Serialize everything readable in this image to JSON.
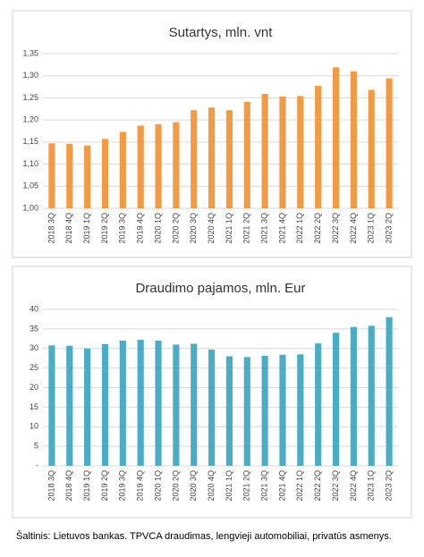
{
  "chart_data": [
    {
      "type": "bar",
      "title": "Sutartys, mln. vnt",
      "color": "#f39a45",
      "grid": true,
      "categories": [
        "2018 3Q",
        "2018 4Q",
        "2019 1Q",
        "2019 2Q",
        "2019 3Q",
        "2019 4Q",
        "2020 1Q",
        "2020 2Q",
        "2020 3Q",
        "2020 4Q",
        "2021 1Q",
        "2021 2Q",
        "2021 3Q",
        "2021 4Q",
        "2022 1Q",
        "2022 2Q",
        "2022 3Q",
        "2022 4Q",
        "2023 1Q",
        "2023 2Q"
      ],
      "values": [
        1.147,
        1.146,
        1.142,
        1.157,
        1.173,
        1.187,
        1.19,
        1.195,
        1.222,
        1.228,
        1.222,
        1.241,
        1.259,
        1.253,
        1.254,
        1.277,
        1.319,
        1.31,
        1.268,
        1.294
      ],
      "ylim": [
        1.0,
        1.35
      ],
      "yticks": [
        {
          "value": 1.0,
          "label": "1,00"
        },
        {
          "value": 1.05,
          "label": "1,05"
        },
        {
          "value": 1.1,
          "label": "1,10"
        },
        {
          "value": 1.15,
          "label": "1,15"
        },
        {
          "value": 1.2,
          "label": "1,20"
        },
        {
          "value": 1.25,
          "label": "1,25"
        },
        {
          "value": 1.3,
          "label": "1,30"
        },
        {
          "value": 1.35,
          "label": "1,35"
        }
      ]
    },
    {
      "type": "bar",
      "title": "Draudimo pajamos, mln. Eur",
      "color": "#4bacc6",
      "grid": true,
      "categories": [
        "2018 3Q",
        "2018 4Q",
        "2019 1Q",
        "2019 2Q",
        "2019 3Q",
        "2019 4Q",
        "2020 1Q",
        "2020 2Q",
        "2020 3Q",
        "2020 4Q",
        "2021 1Q",
        "2021 2Q",
        "2021 3Q",
        "2021 4Q",
        "2022 1Q",
        "2022 2Q",
        "2022 3Q",
        "2022 4Q",
        "2023 1Q",
        "2023 2Q"
      ],
      "values": [
        30.8,
        30.7,
        30.0,
        31.1,
        32.0,
        32.2,
        32.0,
        31.0,
        31.2,
        29.7,
        28.0,
        27.8,
        28.1,
        28.4,
        28.5,
        31.3,
        34.0,
        35.5,
        35.8,
        38.0
      ],
      "ylim": [
        0,
        40
      ],
      "yticks": [
        {
          "value": 0,
          "label": "-"
        },
        5,
        10,
        15,
        20,
        25,
        30,
        35,
        40
      ]
    }
  ],
  "footer": "Šaltinis: Lietuvos bankas. TPVCA draudimas, lengvieji automobiliai, privatūs asmenys."
}
